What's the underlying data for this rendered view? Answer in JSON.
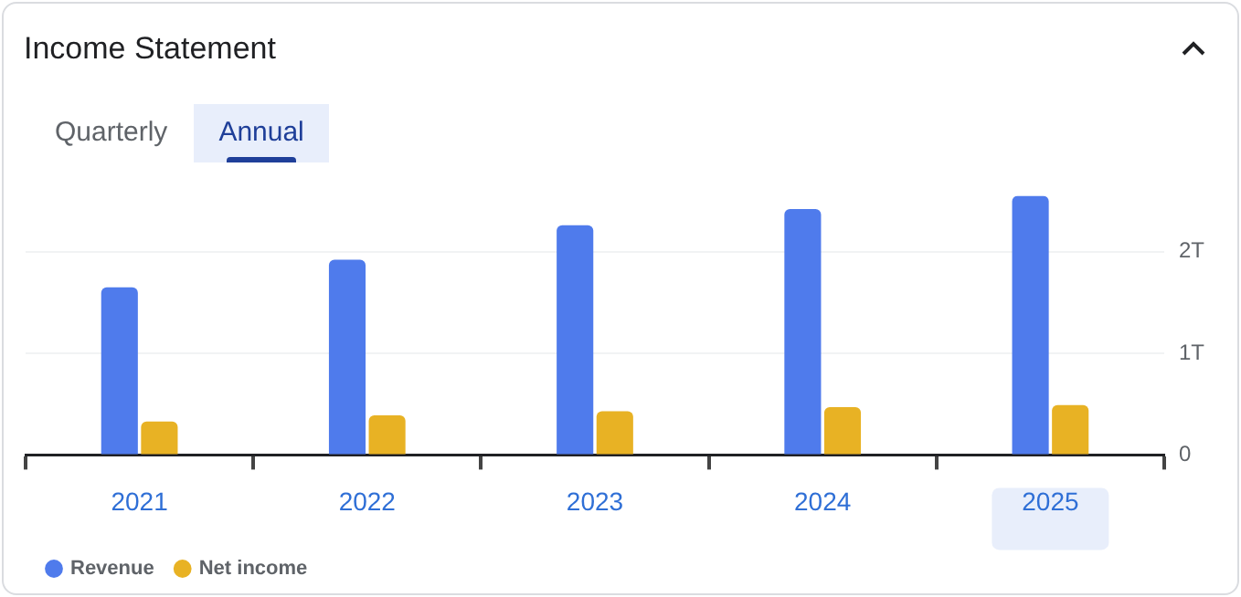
{
  "chart_data": {
    "type": "bar",
    "title": "Income Statement",
    "annotations": [
      "Quarterly",
      "Annual"
    ],
    "categories": [
      "2021",
      "2022",
      "2023",
      "2024",
      "2025"
    ],
    "series": [
      {
        "name": "Revenue",
        "color": "#4f7bec",
        "values": [
          1.65,
          1.92,
          2.26,
          2.42,
          2.55
        ]
      },
      {
        "name": "Net income",
        "color": "#e8b224",
        "values": [
          0.33,
          0.39,
          0.43,
          0.47,
          0.49
        ]
      }
    ],
    "ylim": [
      0,
      2.55
    ],
    "yticks": [
      0,
      {
        "value": 1,
        "label": "1T"
      },
      {
        "value": 2,
        "label": "2T"
      }
    ],
    "grid": "y",
    "legend": "bottom"
  }
}
